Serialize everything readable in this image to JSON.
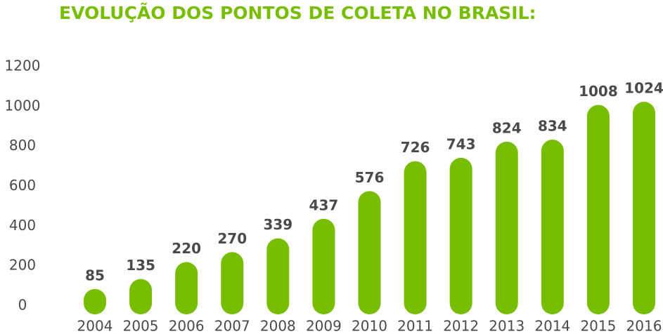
{
  "chart_data": {
    "type": "bar",
    "title": "EVOLUÇÃO DOS PONTOS DE COLETA NO BRASIL:",
    "categories": [
      "2004",
      "2005",
      "2006",
      "2007",
      "2008",
      "2009",
      "2010",
      "2011",
      "2012",
      "2013",
      "2014",
      "2015",
      "2016"
    ],
    "values": [
      85,
      135,
      220,
      270,
      339,
      437,
      576,
      726,
      743,
      824,
      834,
      1008,
      1024
    ],
    "color": "#78be00",
    "ylim": [
      0,
      1200
    ],
    "yticks": [
      0,
      200,
      400,
      600,
      800,
      1000,
      1200
    ],
    "grid": false
  }
}
